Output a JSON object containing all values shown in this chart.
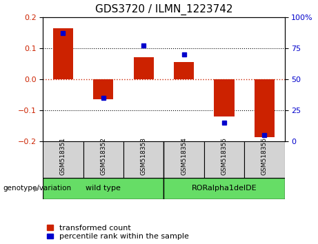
{
  "title": "GDS3720 / ILMN_1223742",
  "samples": [
    "GSM518351",
    "GSM518352",
    "GSM518353",
    "GSM518354",
    "GSM518355",
    "GSM518356"
  ],
  "red_values": [
    0.165,
    -0.065,
    0.07,
    0.055,
    -0.12,
    -0.185
  ],
  "blue_values": [
    87,
    35,
    77,
    70,
    15,
    5
  ],
  "group1_label": "wild type",
  "group1_count": 3,
  "group2_label": "RORalpha1delDE",
  "group2_count": 3,
  "genotype_label": "genotype/variation",
  "ylim_left": [
    -0.2,
    0.2
  ],
  "ylim_right": [
    0,
    100
  ],
  "yticks_left": [
    -0.2,
    -0.1,
    0.0,
    0.1,
    0.2
  ],
  "yticks_right": [
    0,
    25,
    50,
    75,
    100
  ],
  "bar_color": "#cc2200",
  "dot_color": "#0000cc",
  "hline_color": "#cc2200",
  "bar_width": 0.5,
  "title_fontsize": 11,
  "tick_fontsize": 8,
  "legend_fontsize": 8,
  "bg_plot": "#ffffff",
  "bg_sample_row": "#d3d3d3",
  "bg_group_row": "#66dd66"
}
